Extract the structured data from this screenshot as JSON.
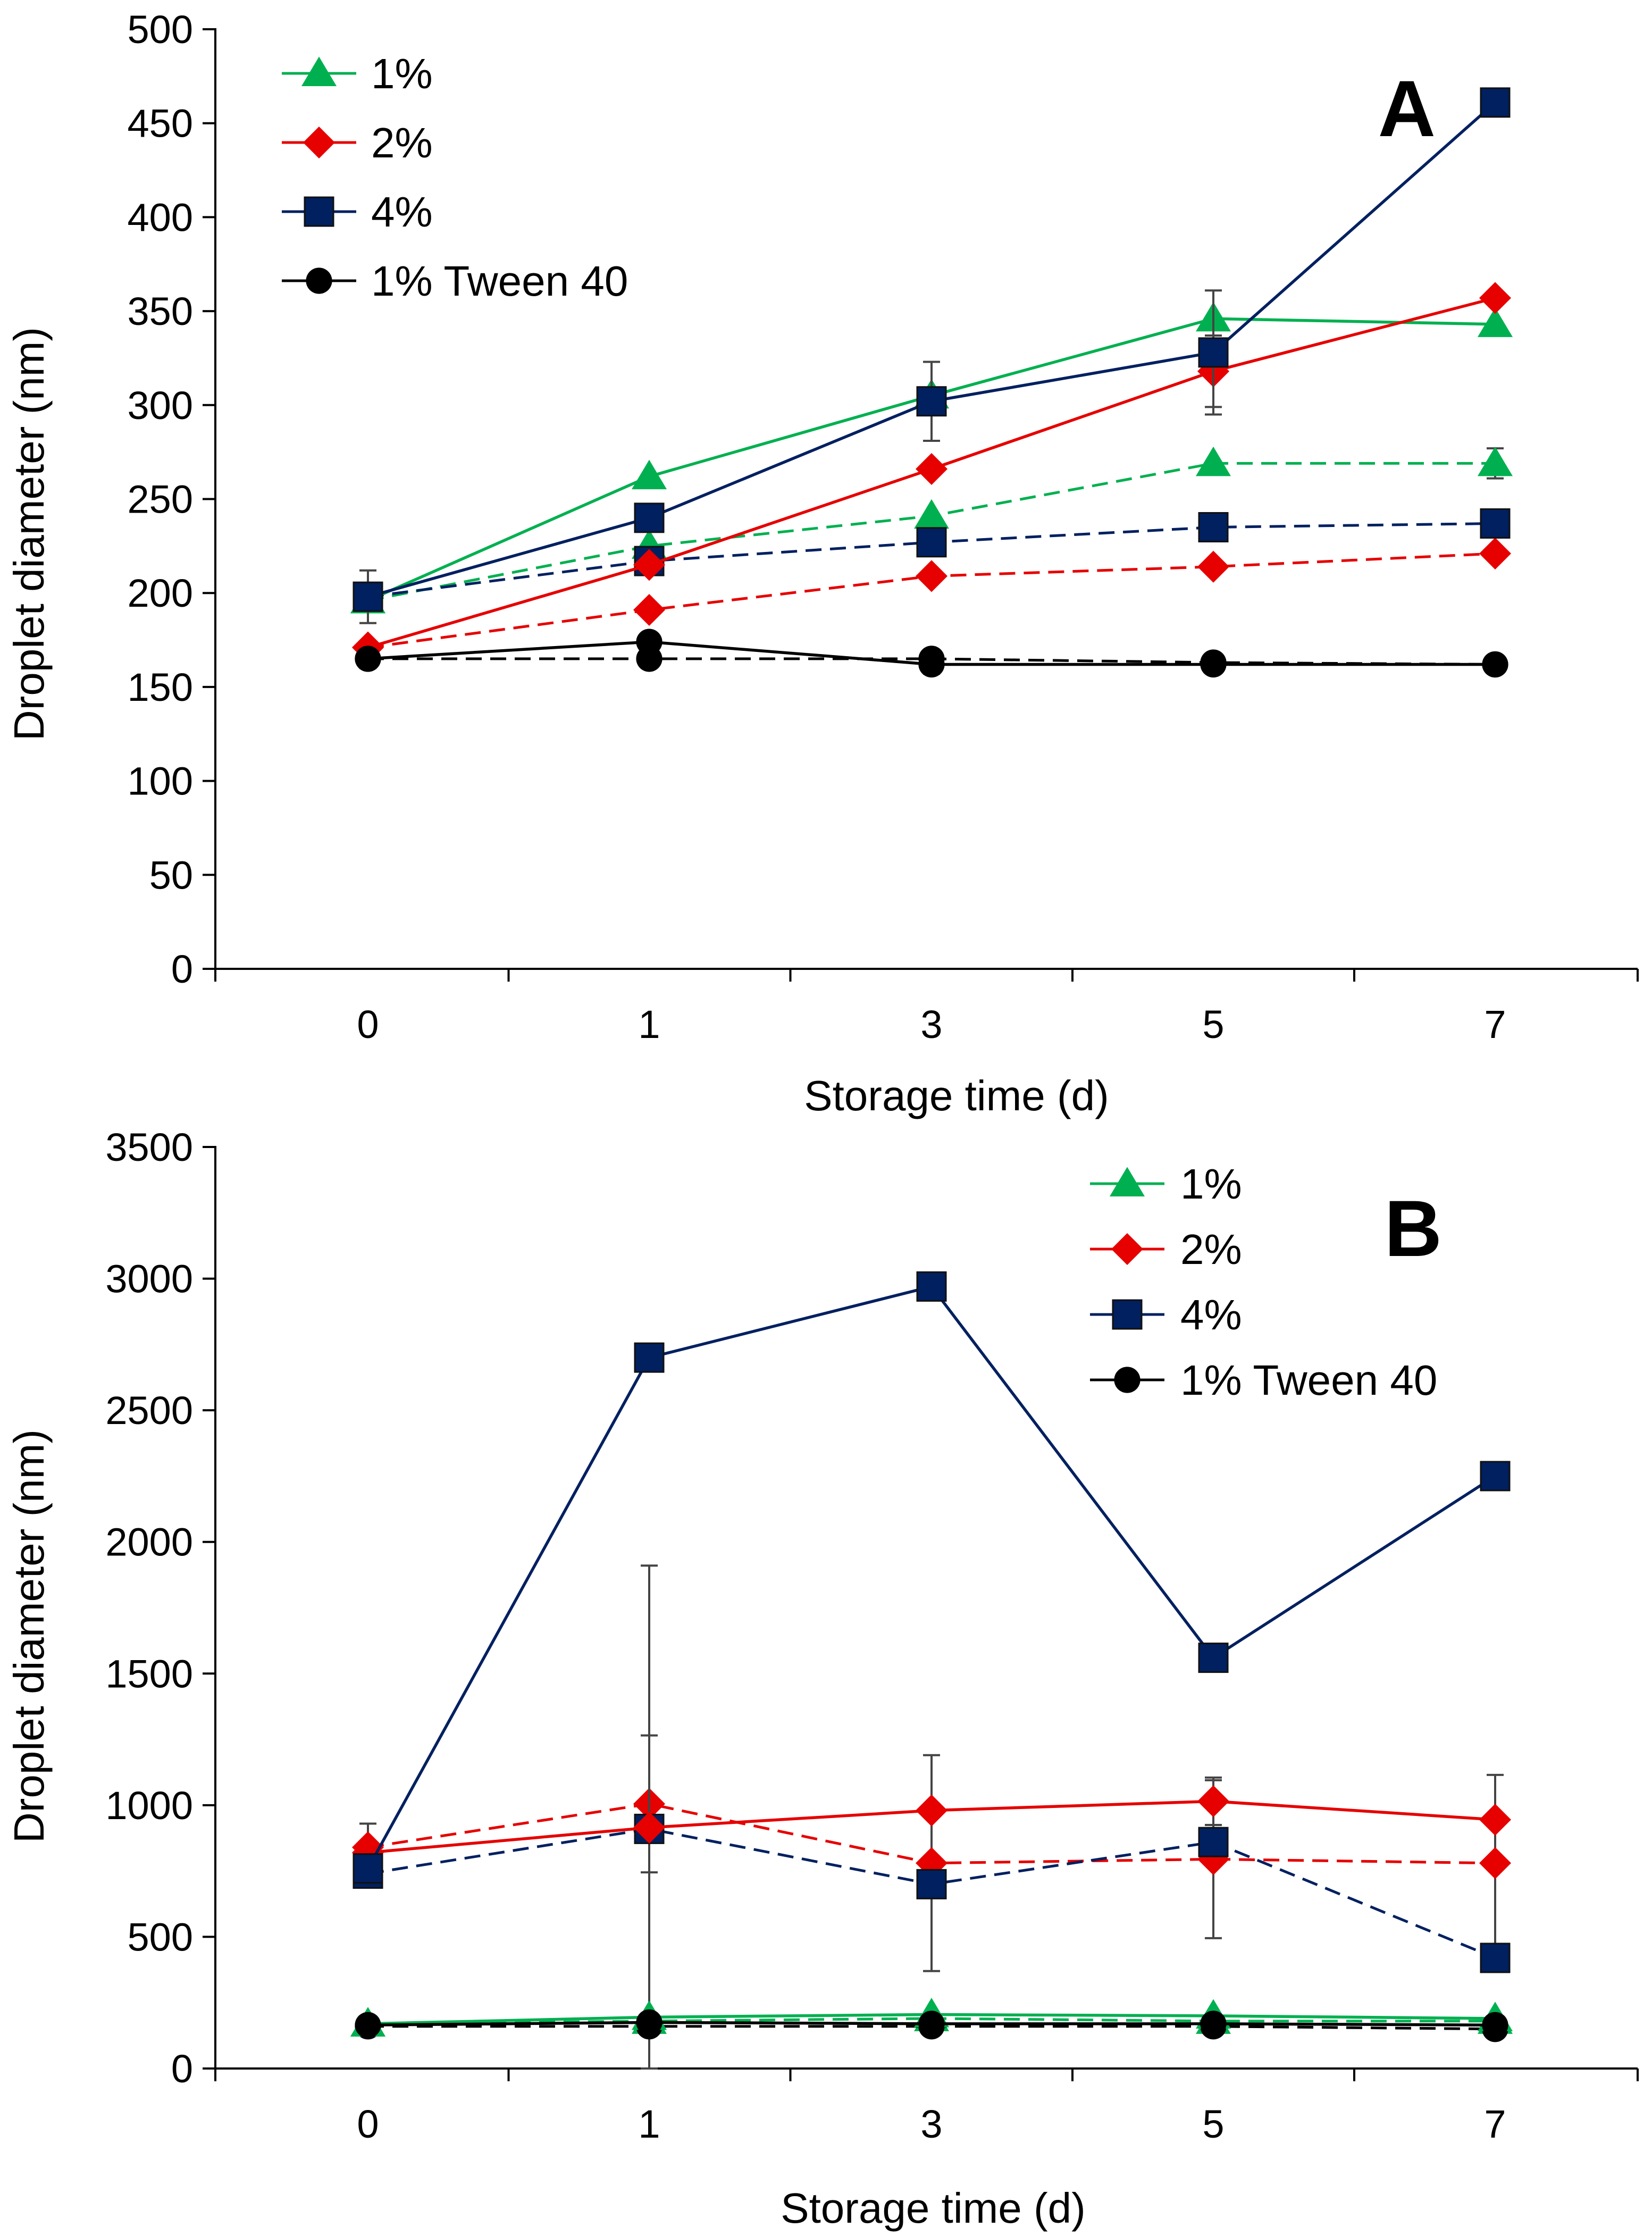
{
  "chart_data": [
    {
      "panel_label": "A",
      "type": "line",
      "xlabel": "Storage time (d)",
      "ylabel": "Droplet diameter (nm)",
      "categories": [
        "0",
        "1",
        "3",
        "5",
        "7"
      ],
      "ylim": [
        0,
        500
      ],
      "yticks": [
        "0",
        "50",
        "100",
        "150",
        "200",
        "250",
        "300",
        "350",
        "400",
        "450",
        "500"
      ],
      "legend_position": "top-left",
      "legend": [
        {
          "label": "1%",
          "series": "1%"
        },
        {
          "label": "2%",
          "series": "2%"
        },
        {
          "label": "4%",
          "series": "4%"
        },
        {
          "label": "1% Tween 40",
          "series": "1% Tween 40"
        }
      ],
      "series": [
        {
          "name": "1%",
          "style": "solid",
          "color": "#00B050",
          "marker": "triangle",
          "values": [
            196,
            262,
            305,
            346,
            343
          ],
          "errors": [
            0,
            0,
            0,
            0,
            0
          ]
        },
        {
          "name": "2%",
          "style": "solid",
          "color": "#E60000",
          "marker": "diamond",
          "values": [
            171,
            215,
            266,
            318,
            357
          ],
          "errors": [
            0,
            0,
            0,
            19,
            0
          ]
        },
        {
          "name": "4%",
          "style": "solid",
          "color": "#002060",
          "marker": "square",
          "values": [
            198,
            240,
            302,
            328,
            461
          ],
          "errors": [
            14,
            0,
            21,
            33,
            0
          ]
        },
        {
          "name": "1% Tween 40",
          "style": "solid",
          "color": "#000000",
          "marker": "circle",
          "values": [
            165,
            174,
            162,
            162,
            162
          ],
          "errors": [
            5,
            0,
            5,
            0,
            0
          ]
        },
        {
          "name": "1% (dashed)",
          "style": "dashed",
          "color": "#00B050",
          "marker": "triangle",
          "values": [
            196,
            225,
            241,
            269,
            269
          ],
          "errors": [
            0,
            0,
            0,
            0,
            8
          ]
        },
        {
          "name": "2% (dashed)",
          "style": "dashed",
          "color": "#E60000",
          "marker": "diamond",
          "values": [
            171,
            191,
            209,
            214,
            221
          ],
          "errors": [
            0,
            0,
            0,
            0,
            0
          ]
        },
        {
          "name": "4% (dashed)",
          "style": "dashed",
          "color": "#002060",
          "marker": "square",
          "values": [
            198,
            217,
            227,
            235,
            237
          ],
          "errors": [
            0,
            0,
            0,
            0,
            0
          ]
        },
        {
          "name": "1% Tween 40 (dashed)",
          "style": "dashed",
          "color": "#000000",
          "marker": "circle",
          "values": [
            165,
            165,
            165,
            163,
            162
          ],
          "errors": [
            0,
            0,
            0,
            0,
            0
          ]
        }
      ]
    },
    {
      "panel_label": "B",
      "type": "line",
      "xlabel": "Storage time (d)",
      "ylabel": "Droplet diameter (nm)",
      "categories": [
        "0",
        "1",
        "3",
        "5",
        "7"
      ],
      "ylim": [
        0,
        3500
      ],
      "yticks": [
        "0",
        "500",
        "1000",
        "1500",
        "2000",
        "2500",
        "3000",
        "3500"
      ],
      "legend_position": "top-right",
      "legend": [
        {
          "label": "1%",
          "series": "1%"
        },
        {
          "label": "2%",
          "series": "2%"
        },
        {
          "label": "4%",
          "series": "4%"
        },
        {
          "label": "1% Tween 40",
          "series": "1% Tween 40"
        }
      ],
      "series": [
        {
          "name": "1%",
          "style": "solid",
          "color": "#00B050",
          "marker": "triangle",
          "values": [
            170,
            195,
            205,
            200,
            190
          ],
          "errors": [
            0,
            0,
            0,
            0,
            0
          ]
        },
        {
          "name": "2%",
          "style": "solid",
          "color": "#E60000",
          "marker": "diamond",
          "values": [
            820,
            915,
            980,
            1015,
            945
          ],
          "errors": [
            0,
            0,
            0,
            90,
            0
          ]
        },
        {
          "name": "4%",
          "style": "solid",
          "color": "#002060",
          "marker": "square",
          "values": [
            760,
            2700,
            2970,
            1560,
            2250
          ],
          "errors": [
            0,
            0,
            0,
            0,
            0
          ]
        },
        {
          "name": "1% Tween 40",
          "style": "solid",
          "color": "#000000",
          "marker": "circle",
          "values": [
            165,
            175,
            170,
            170,
            165
          ],
          "errors": [
            0,
            0,
            0,
            0,
            0
          ]
        },
        {
          "name": "1% (dashed)",
          "style": "dashed",
          "color": "#00B050",
          "marker": "triangle",
          "values": [
            170,
            180,
            190,
            180,
            180
          ],
          "errors": [
            0,
            0,
            0,
            0,
            0
          ]
        },
        {
          "name": "2% (dashed)",
          "style": "dashed",
          "color": "#E60000",
          "marker": "diamond",
          "values": [
            840,
            1005,
            780,
            795,
            780
          ],
          "errors": [
            90,
            260,
            410,
            300,
            335
          ]
        },
        {
          "name": "4% (dashed)",
          "style": "dashed",
          "color": "#002060",
          "marker": "square",
          "values": [
            740,
            910,
            700,
            860,
            420
          ],
          "errors": [
            0,
            1000,
            0,
            0,
            0
          ]
        },
        {
          "name": "1% Tween 40 (dashed)",
          "style": "dashed",
          "color": "#000000",
          "marker": "circle",
          "values": [
            160,
            160,
            160,
            160,
            150
          ],
          "errors": [
            0,
            0,
            0,
            0,
            0
          ]
        }
      ]
    }
  ]
}
